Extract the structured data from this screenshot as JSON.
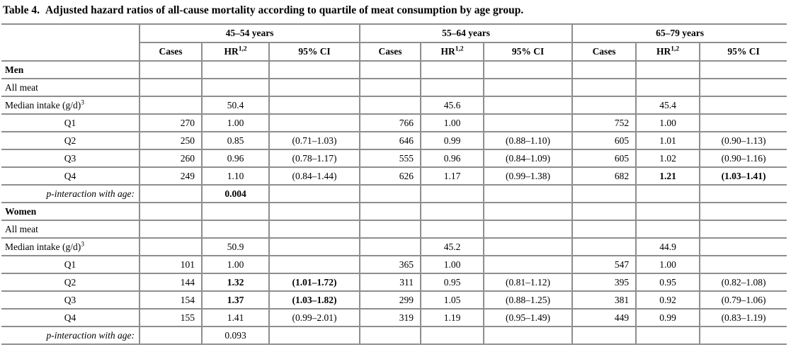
{
  "meta": {
    "background_color": "#ffffff",
    "border_color": "#8e8e8e",
    "text_color": "#000000"
  },
  "caption": {
    "number": "Table 4.",
    "text": "Adjusted hazard ratios of all-cause mortality according to quartile of meat consumption by age group."
  },
  "header": {
    "age_groups": [
      "45–54 years",
      "55–64 years",
      "65–79 years"
    ],
    "cases_label": "Cases",
    "hr_label": "HR",
    "hr_superscript": "1,2",
    "ci_label": "95% CI"
  },
  "row_labels": {
    "median_label": "Median intake (g/d)",
    "median_superscript": "3",
    "p_interaction_label": "p-interaction with age:"
  },
  "sections": [
    {
      "name": "Men",
      "subgroup": "All meat",
      "medians": [
        "50.4",
        "45.6",
        "45.4"
      ],
      "quartiles": [
        {
          "label": "Q1",
          "cells": [
            {
              "cases": "270",
              "hr": "1.00",
              "ci": ""
            },
            {
              "cases": "766",
              "hr": "1.00",
              "ci": ""
            },
            {
              "cases": "752",
              "hr": "1.00",
              "ci": ""
            }
          ]
        },
        {
          "label": "Q2",
          "cells": [
            {
              "cases": "250",
              "hr": "0.85",
              "ci": "(0.71–1.03)"
            },
            {
              "cases": "646",
              "hr": "0.99",
              "ci": "(0.88–1.10)"
            },
            {
              "cases": "605",
              "hr": "1.01",
              "ci": "(0.90–1.13)"
            }
          ]
        },
        {
          "label": "Q3",
          "cells": [
            {
              "cases": "260",
              "hr": "0.96",
              "ci": "(0.78–1.17)"
            },
            {
              "cases": "555",
              "hr": "0.96",
              "ci": "(0.84–1.09)"
            },
            {
              "cases": "605",
              "hr": "1.02",
              "ci": "(0.90–1.16)"
            }
          ]
        },
        {
          "label": "Q4",
          "cells": [
            {
              "cases": "249",
              "hr": "1.10",
              "ci": "(0.84–1.44)"
            },
            {
              "cases": "626",
              "hr": "1.17",
              "ci": "(0.99–1.38)"
            },
            {
              "cases": "682",
              "hr": "1.21",
              "hr_bold": true,
              "ci": "(1.03–1.41)",
              "ci_bold": true
            }
          ]
        }
      ],
      "p_value": "0.004",
      "p_bold": true
    },
    {
      "name": "Women",
      "subgroup": "All meat",
      "medians": [
        "50.9",
        "45.2",
        "44.9"
      ],
      "quartiles": [
        {
          "label": "Q1",
          "cells": [
            {
              "cases": "101",
              "hr": "1.00",
              "ci": ""
            },
            {
              "cases": "365",
              "hr": "1.00",
              "ci": ""
            },
            {
              "cases": "547",
              "hr": "1.00",
              "ci": ""
            }
          ]
        },
        {
          "label": "Q2",
          "cells": [
            {
              "cases": "144",
              "hr": "1.32",
              "hr_bold": true,
              "ci": "(1.01–1.72)",
              "ci_bold": true
            },
            {
              "cases": "311",
              "hr": "0.95",
              "ci": "(0.81–1.12)"
            },
            {
              "cases": "395",
              "hr": "0.95",
              "ci": "(0.82–1.08)"
            }
          ]
        },
        {
          "label": "Q3",
          "cells": [
            {
              "cases": "154",
              "hr": "1.37",
              "hr_bold": true,
              "ci": "(1.03–1.82)",
              "ci_bold": true
            },
            {
              "cases": "299",
              "hr": "1.05",
              "ci": "(0.88–1.25)"
            },
            {
              "cases": "381",
              "hr": "0.92",
              "ci": "(0.79–1.06)"
            }
          ]
        },
        {
          "label": "Q4",
          "cells": [
            {
              "cases": "155",
              "hr": "1.41",
              "ci": "(0.99–2.01)"
            },
            {
              "cases": "319",
              "hr": "1.19",
              "ci": "(0.95–1.49)"
            },
            {
              "cases": "449",
              "hr": "0.99",
              "ci": "(0.83–1.19)"
            }
          ]
        }
      ],
      "p_value": "0.093",
      "p_bold": false
    }
  ]
}
